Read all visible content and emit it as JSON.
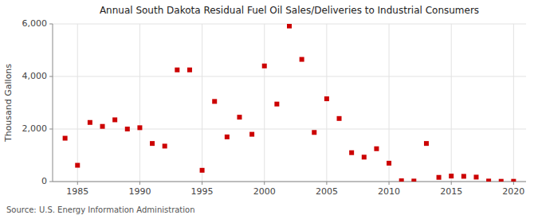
{
  "chart_data": {
    "type": "scatter",
    "title": "Annual South Dakota Residual Fuel Oil Sales/Deliveries to Industrial Consumers",
    "ylabel": "Thousand Gallons",
    "source": "Source: U.S. Energy Information Administration",
    "color": "#cc0000",
    "marker": "square",
    "grid": true,
    "xlim": [
      1983,
      2021
    ],
    "ylim": [
      0,
      6000
    ],
    "xticks": [
      1985,
      1990,
      1995,
      2000,
      2005,
      2010,
      2015,
      2020
    ],
    "yticks": [
      0,
      {
        "value": 2000,
        "label": "2,000"
      },
      {
        "value": 4000,
        "label": "4,000"
      },
      {
        "value": 6000,
        "label": "6,000"
      }
    ],
    "x": [
      1984,
      1985,
      1986,
      1987,
      1988,
      1989,
      1990,
      1991,
      1992,
      1993,
      1994,
      1995,
      1996,
      1997,
      1998,
      1999,
      2000,
      2001,
      2002,
      2003,
      2004,
      2005,
      2006,
      2007,
      2008,
      2009,
      2010,
      2011,
      2012,
      2013,
      2014,
      2015,
      2016,
      2017,
      2018,
      2019,
      2020
    ],
    "values": [
      1650,
      620,
      2250,
      2100,
      2350,
      2000,
      2050,
      1450,
      1350,
      4250,
      4250,
      430,
      3050,
      1700,
      2450,
      1800,
      4400,
      2950,
      5920,
      4650,
      1870,
      3150,
      2400,
      1100,
      930,
      1250,
      700,
      30,
      20,
      1450,
      160,
      210,
      200,
      170,
      20,
      10,
      10
    ]
  }
}
